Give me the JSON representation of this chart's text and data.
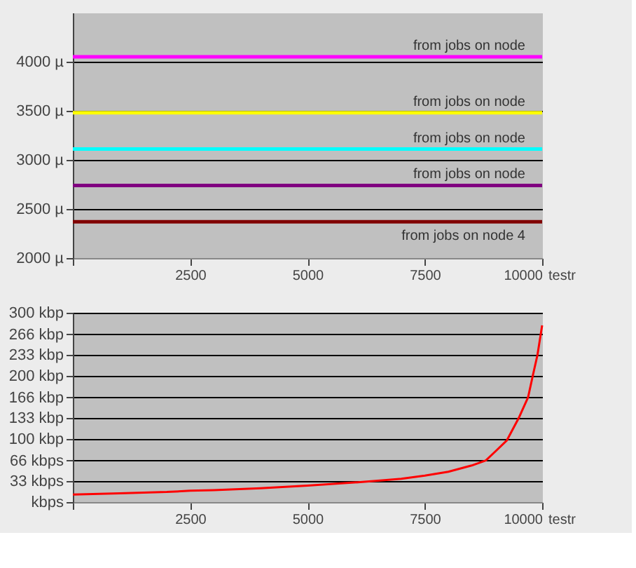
{
  "chart_data": [
    {
      "type": "line",
      "xlabel": "testr",
      "x": [
        0,
        500,
        1000,
        1500,
        2000,
        2500,
        3000,
        3500,
        4000,
        4500,
        5000,
        5500,
        6000,
        6500,
        7000,
        7500,
        8000,
        8500,
        9000,
        9500,
        10000
      ],
      "series": [
        {
          "name": "from jobs on node",
          "color": "#ff00ff",
          "values": [
            4050,
            4050,
            4050,
            4050,
            4050,
            4050,
            4050,
            4050,
            4050,
            4050,
            4050,
            4050,
            4050,
            4050,
            4050,
            4050,
            4050,
            4050,
            4050,
            4050,
            4050
          ]
        },
        {
          "name": "from jobs on node",
          "color": "#ffff00",
          "values": [
            3480,
            3480,
            3480,
            3480,
            3480,
            3480,
            3480,
            3480,
            3480,
            3480,
            3480,
            3480,
            3480,
            3480,
            3480,
            3480,
            3480,
            3480,
            3480,
            3480,
            3480
          ]
        },
        {
          "name": "from jobs on node",
          "color": "#00ffff",
          "values": [
            3110,
            3110,
            3110,
            3110,
            3110,
            3110,
            3110,
            3110,
            3110,
            3110,
            3110,
            3110,
            3110,
            3110,
            3110,
            3110,
            3110,
            3110,
            3110,
            3110,
            3110
          ]
        },
        {
          "name": "from jobs on node",
          "color": "#800080",
          "values": [
            2740,
            2740,
            2740,
            2740,
            2740,
            2740,
            2740,
            2740,
            2740,
            2740,
            2740,
            2740,
            2740,
            2740,
            2740,
            2740,
            2740,
            2740,
            2740,
            2740,
            2740
          ]
        },
        {
          "name": "from jobs on node 4",
          "color": "#800000",
          "values": [
            2370,
            2370,
            2370,
            2370,
            2370,
            2370,
            2370,
            2370,
            2370,
            2370,
            2370,
            2370,
            2370,
            2370,
            2370,
            2370,
            2370,
            2370,
            2370,
            2370,
            2370
          ]
        }
      ],
      "xlim": [
        0,
        10000
      ],
      "xticks": [
        {
          "value": 0,
          "label": null
        },
        2500,
        5000,
        7500,
        10000
      ],
      "ylim": [
        2000,
        4500
      ],
      "yticks": [
        {
          "value": 2000,
          "label": "2000 µ"
        },
        {
          "value": 2500,
          "label": "2500 µ"
        },
        {
          "value": 3000,
          "label": "3000 µ"
        },
        {
          "value": 3500,
          "label": "3500 µ"
        },
        {
          "value": 4000,
          "label": "4000 µ"
        }
      ],
      "grid": "y",
      "marker": "none",
      "line_style": "solid"
    },
    {
      "type": "line",
      "xlabel": "testr",
      "x": [
        0,
        1000,
        2000,
        2500,
        3000,
        4000,
        5000,
        6000,
        6500,
        7000,
        7500,
        8000,
        8500,
        8800,
        9000,
        9250,
        9500,
        9700,
        9800,
        9900,
        10000
      ],
      "series": [
        {
          "color": "#ff0000",
          "values": [
            12,
            14,
            16,
            18,
            19,
            22,
            26,
            31,
            34,
            37,
            42,
            48,
            58,
            66,
            80,
            98,
            133,
            166,
            200,
            233,
            280
          ]
        }
      ],
      "xlim": [
        0,
        10000
      ],
      "xticks": [
        {
          "value": 0,
          "label": null
        },
        2500,
        5000,
        7500,
        10000
      ],
      "ylim": [
        0,
        300
      ],
      "yticks": [
        {
          "value": 0,
          "label": "kbps"
        },
        {
          "value": 33,
          "label": "33 kbps"
        },
        {
          "value": 66,
          "label": "66 kbps"
        },
        {
          "value": 100,
          "label": "100 kbp"
        },
        {
          "value": 133,
          "label": "133 kbp"
        },
        {
          "value": 166,
          "label": "166 kbp"
        },
        {
          "value": 200,
          "label": "200 kbp"
        },
        {
          "value": 233,
          "label": "233 kbp"
        },
        {
          "value": 266,
          "label": "266 kbp"
        },
        {
          "value": 300,
          "label": "300 kbp"
        }
      ],
      "grid": "y",
      "marker": "none",
      "line_style": "solid"
    }
  ]
}
